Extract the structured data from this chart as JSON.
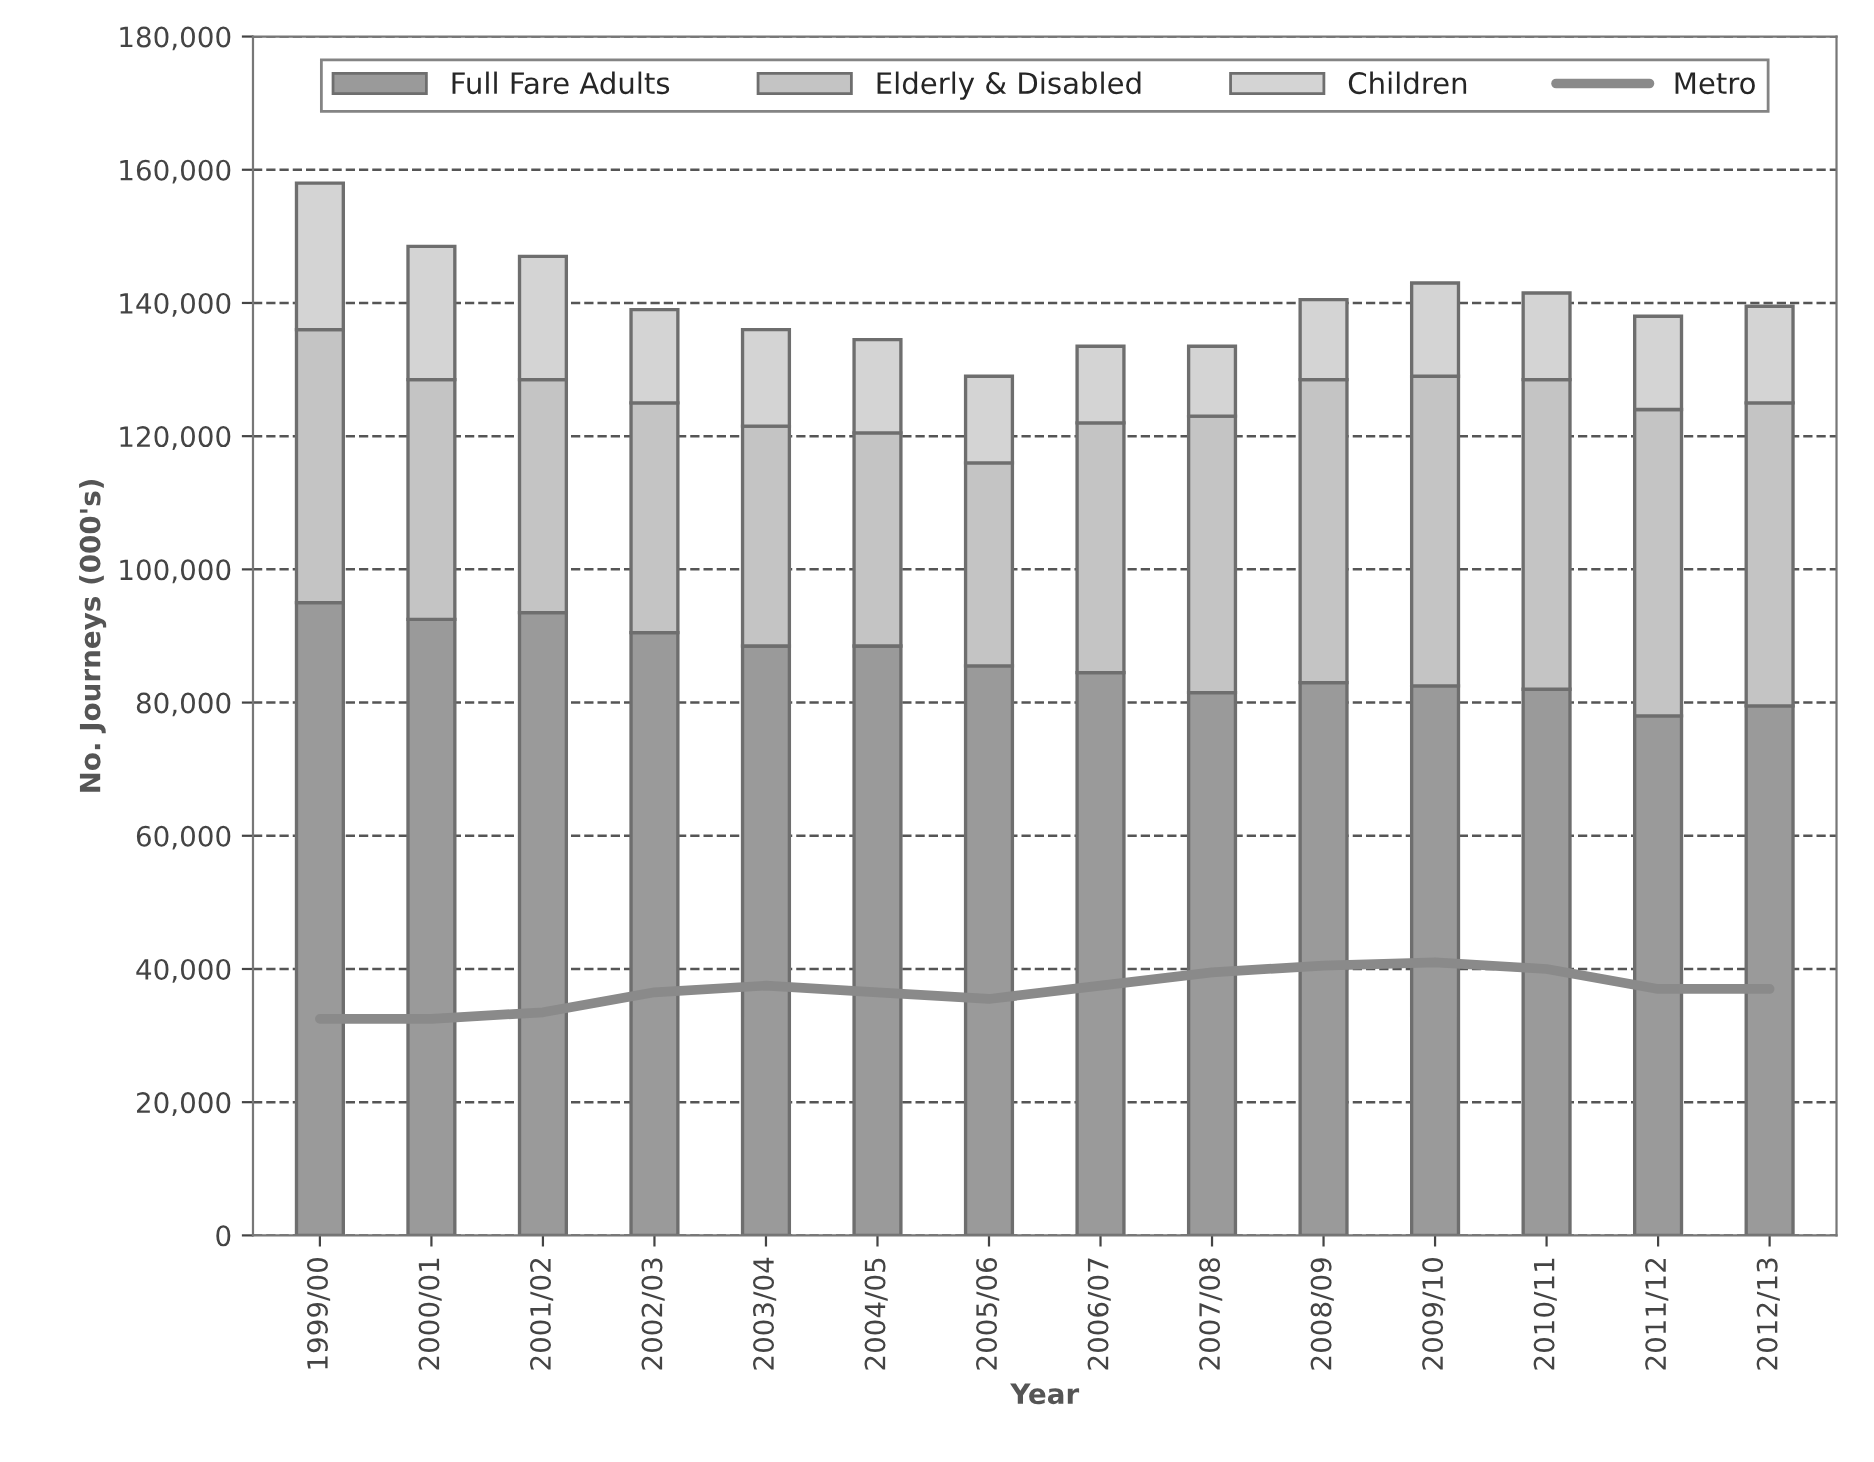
{
  "chart_data": {
    "type": "bar",
    "stacked": true,
    "xlabel": "Year",
    "ylabel": "No. Journeys (000's)",
    "categories": [
      "1999/00",
      "2000/01",
      "2001/02",
      "2002/03",
      "2003/04",
      "2004/05",
      "2005/06",
      "2006/07",
      "2007/08",
      "2008/09",
      "2009/10",
      "2010/11",
      "2011/12",
      "2012/13"
    ],
    "series": [
      {
        "name": "Full Fare Adults",
        "color": "#9a9a9a",
        "values": [
          95000,
          92500,
          93500,
          90500,
          88500,
          88500,
          85500,
          84500,
          81500,
          83000,
          82500,
          82000,
          78000,
          79500
        ]
      },
      {
        "name": "Elderly & Disabled",
        "color": "#c4c4c4",
        "values": [
          41000,
          36000,
          35000,
          34500,
          33000,
          32000,
          30500,
          37500,
          41500,
          45500,
          46500,
          46500,
          46000,
          45500
        ]
      },
      {
        "name": "Children",
        "color": "#d4d4d4",
        "values": [
          22000,
          20000,
          18500,
          14000,
          14500,
          14000,
          13000,
          11500,
          10500,
          12000,
          14000,
          13000,
          14000,
          14500
        ]
      },
      {
        "name": "Metro",
        "type": "line",
        "color": "#8a8a8a",
        "values": [
          32500,
          32500,
          33500,
          36500,
          37500,
          36500,
          35500,
          37500,
          39500,
          40500,
          41000,
          40000,
          37000,
          37000
        ]
      }
    ],
    "ylim": [
      0,
      180000
    ],
    "yticks": [
      {
        "value": 0,
        "label": "0"
      },
      {
        "value": 20000,
        "label": "20,000"
      },
      {
        "value": 40000,
        "label": "40,000"
      },
      {
        "value": 60000,
        "label": "60,000"
      },
      {
        "value": 80000,
        "label": "80,000"
      },
      {
        "value": 100000,
        "label": "100,000"
      },
      {
        "value": 120000,
        "label": "120,000"
      },
      {
        "value": 140000,
        "label": "140,000"
      },
      {
        "value": 160000,
        "label": "160,000"
      },
      {
        "value": 180000,
        "label": "180,000"
      }
    ],
    "grid": "y",
    "legend": "top",
    "marker": "none",
    "line_style": "solid"
  }
}
